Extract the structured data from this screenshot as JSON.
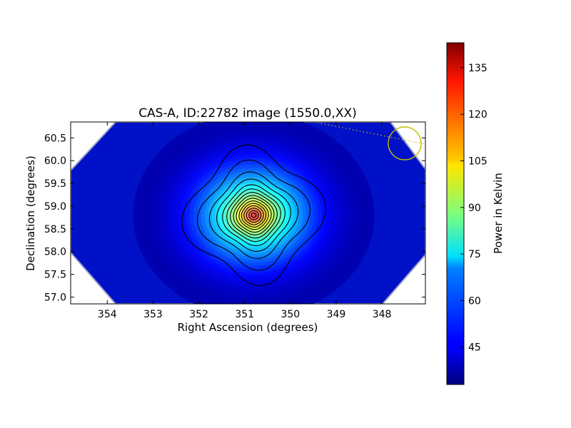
{
  "chart_data": {
    "type": "heatmap",
    "title": "CAS-A, ID:22782 image (1550.0,XX)",
    "xlabel": "Right Ascension (degrees)",
    "ylabel": "Declination (degrees)",
    "xlim": [
      354.8,
      347.05
    ],
    "ylim": [
      56.85,
      60.85
    ],
    "x_ticks": [
      354,
      353,
      352,
      351,
      350,
      349,
      348
    ],
    "y_ticks": [
      57.0,
      57.5,
      58.0,
      58.5,
      59.0,
      59.5,
      60.0,
      60.5
    ],
    "colorbar": {
      "label": "Power in Kelvin",
      "range": [
        33,
        143
      ],
      "ticks": [
        45,
        60,
        75,
        90,
        105,
        120,
        135
      ],
      "colormap": "jet"
    },
    "source": {
      "name": "CAS-A",
      "peak_ra": 350.8,
      "peak_dec": 58.8,
      "peak_value": 140,
      "background_value": 38
    },
    "beam_circle": {
      "ra": 347.5,
      "dec": 60.38,
      "color": "#bfbf00"
    },
    "grid": false,
    "colors": {
      "background": "#ffffff",
      "contour": "#000000",
      "beam": "#bfbf00"
    }
  }
}
